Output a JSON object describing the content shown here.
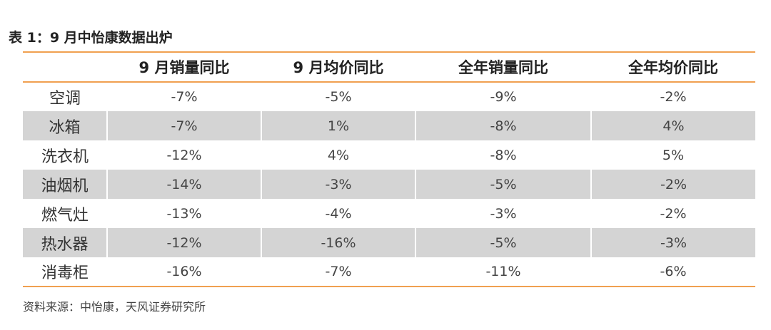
{
  "caption": "表 1：9 月中怡康数据出炉",
  "table": {
    "headers": [
      "",
      "9 月销量同比",
      "9 月均价同比",
      "全年销量同比",
      "全年均价同比"
    ],
    "rows": [
      [
        "空调",
        "-7%",
        "-5%",
        "-9%",
        "-2%"
      ],
      [
        "冰箱",
        "-7%",
        "1%",
        "-8%",
        "4%"
      ],
      [
        "洗衣机",
        "-12%",
        "4%",
        "-8%",
        "5%"
      ],
      [
        "油烟机",
        "-14%",
        "-3%",
        "-5%",
        "-2%"
      ],
      [
        "燃气灶",
        "-13%",
        "-4%",
        "-3%",
        "-2%"
      ],
      [
        "热水器",
        "-12%",
        "-16%",
        "-5%",
        "-3%"
      ],
      [
        "消毒柜",
        "-16%",
        "-7%",
        "-11%",
        "-6%"
      ]
    ]
  },
  "source": "资料来源：中怡康，天风证券研究所",
  "colors": {
    "rule": "#f0a050",
    "shade": "#d4d4d4"
  }
}
